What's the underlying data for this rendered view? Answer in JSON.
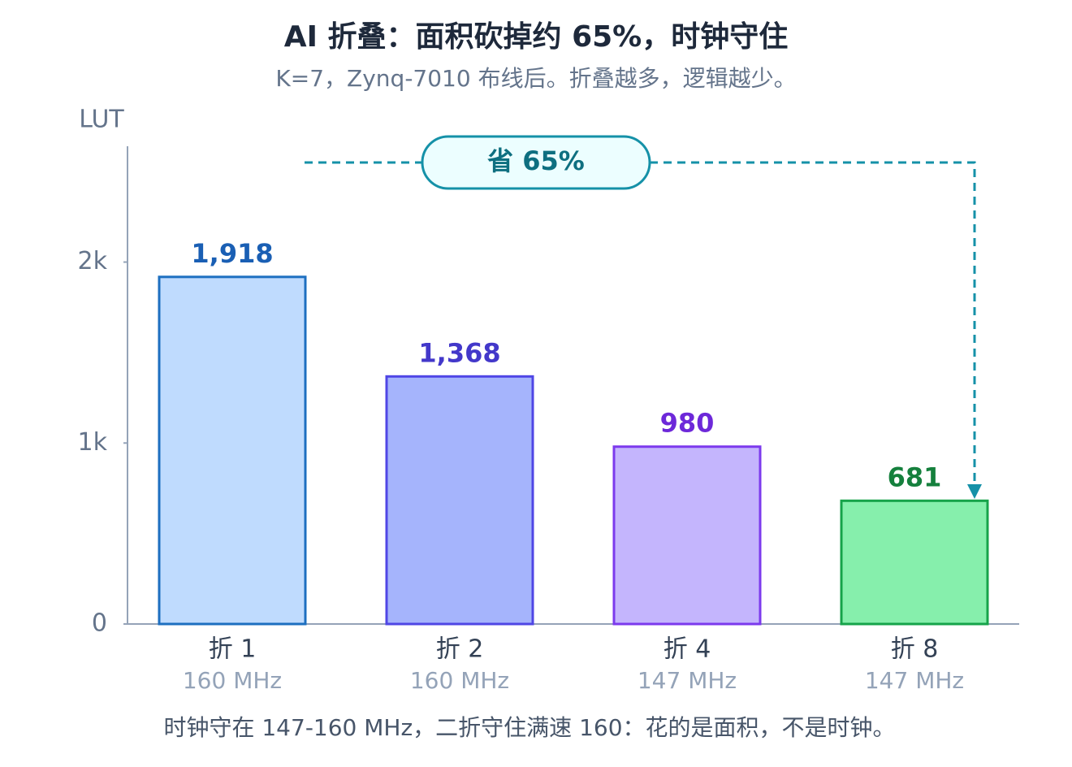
{
  "chart_data": {
    "type": "bar",
    "title": "AI 折叠：面积砍掉约 65%，时钟守住",
    "subtitle": "K=7，Zynq-7010 布线后。折叠越多，逻辑越少。",
    "y_label": "LUT",
    "categories": [
      "折 1",
      "折 2",
      "折 4",
      "折 8"
    ],
    "sub_labels": [
      "160 MHz",
      "160 MHz",
      "147 MHz",
      "147 MHz"
    ],
    "values": [
      1918,
      1368,
      980,
      681
    ],
    "value_labels": [
      "1,918",
      "1,368",
      "980",
      "681"
    ],
    "colors": [
      "#bfdbfe",
      "#a5b4fc",
      "#c4b5fd",
      "#86efac"
    ],
    "edge_colors": [
      "#1d6fc0",
      "#4f46e5",
      "#7c3aed",
      "#16a34a"
    ],
    "label_colors": [
      "#1a5fb4",
      "#4338ca",
      "#6d28d9",
      "#15803d"
    ],
    "ylim": [
      0,
      2640
    ],
    "yticks": [
      0,
      {
        "value": 1000,
        "label": "1k"
      },
      {
        "value": 2000,
        "label": "2k"
      }
    ],
    "annotation": "省 65%",
    "note": "时钟守在 147-160 MHz，二折守住满速 160：花的是面积，不是时钟。"
  }
}
